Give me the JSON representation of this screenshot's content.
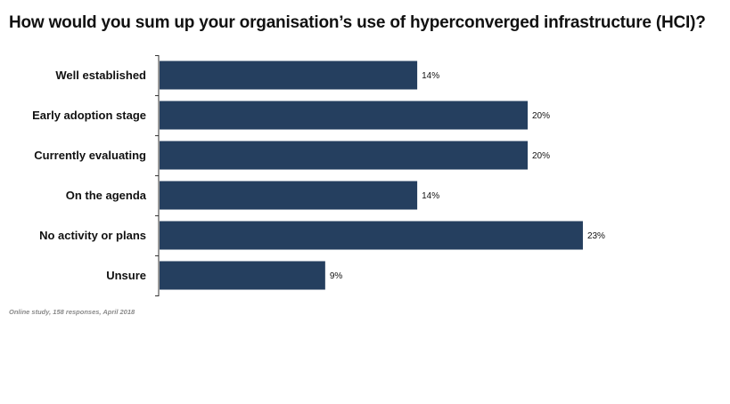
{
  "title": "How would you sum up your organisation’s use of hyperconverged infrastructure (HCI)?",
  "footnote": "Online study, 158 responses, April 2018",
  "colors": {
    "bar": "#253f5f",
    "axis": "#333333"
  },
  "chart_data": {
    "type": "bar",
    "orientation": "horizontal",
    "categories": [
      "Well established",
      "Early adoption stage",
      "Currently evaluating",
      "On the agenda",
      "No activity or plans",
      "Unsure"
    ],
    "values": [
      14,
      20,
      20,
      14,
      23,
      9
    ],
    "value_labels": [
      "14%",
      "20%",
      "20%",
      "14%",
      "23%",
      "9%"
    ],
    "unit": "%",
    "xlim": [
      0,
      25
    ],
    "grid": false,
    "legend": "none"
  }
}
